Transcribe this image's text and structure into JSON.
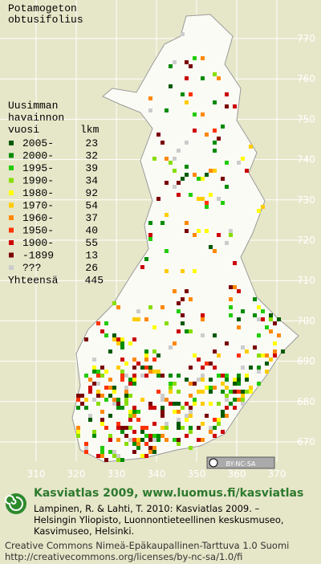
{
  "map": {
    "title": [
      "Potamogeton",
      "obtusifolius"
    ],
    "legend_title": [
      "Uusimman",
      "havainnon",
      "vuosi"
    ],
    "legend_count_header": "lkm",
    "legend": [
      {
        "label": "2005-",
        "count": 23,
        "color": "#005a00"
      },
      {
        "label": "2000-",
        "count": 32,
        "color": "#008c00"
      },
      {
        "label": "1995-",
        "count": 39,
        "color": "#22cc00"
      },
      {
        "label": "1990-",
        "count": 34,
        "color": "#88dd00"
      },
      {
        "label": "1980-",
        "count": 92,
        "color": "#ffff00"
      },
      {
        "label": "1970-",
        "count": 54,
        "color": "#ffcc00"
      },
      {
        "label": "1960-",
        "count": 37,
        "color": "#ff8800"
      },
      {
        "label": "1950-",
        "count": 40,
        "color": "#ff3300"
      },
      {
        "label": "1900-",
        "count": 55,
        "color": "#cc0000"
      },
      {
        "label": "-1899",
        "count": 13,
        "color": "#7a0000"
      },
      {
        "label": "???",
        "count": 26,
        "color": "#cccccc"
      }
    ],
    "total_label": "Yhteensä",
    "total_count": 445,
    "grid_x": [
      310,
      320,
      330,
      340,
      350,
      360,
      370
    ],
    "grid_y": [
      670,
      680,
      690,
      700,
      710,
      720,
      730,
      740,
      750,
      760,
      770
    ],
    "license_badge": "BY-NC-SA"
  },
  "footer": {
    "heading": "Kasviatlas 2009, www.luomus.fi/kasviatlas",
    "citation": [
      "Lampinen, R. & Lahti, T. 2010: Kasviatlas 2009. –",
      "Helsingin Yliopisto, Luonnontieteellinen keskusmuseo,",
      "Kasvimuseo, Helsinki."
    ],
    "license": [
      "Creative Commons Nimeä-Epäkaupallinen-Tarttuva 1.0 Suomi",
      "http://creativecommons.org/licenses/by-nc-sa/1.0/fi"
    ]
  }
}
